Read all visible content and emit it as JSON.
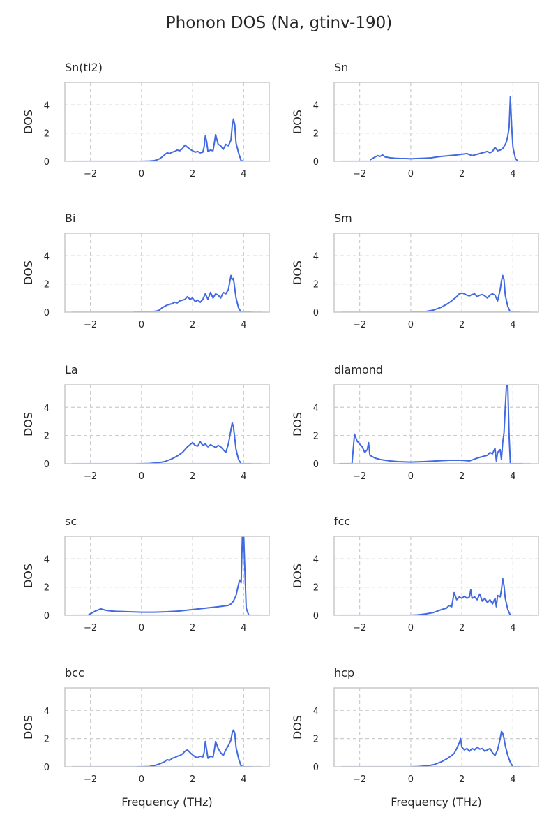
{
  "title": "Phonon DOS (Na, gtinv-190)",
  "chart_data": {
    "type": "line",
    "shared": {
      "xlabel": "Frequency (THz)",
      "ylabel": "DOS",
      "xlim": [
        -3,
        5
      ],
      "ylim": [
        0,
        5.6
      ],
      "xticks": [
        -2,
        0,
        2,
        4
      ],
      "yticks": [
        0,
        2,
        4
      ],
      "grid": true,
      "grid_style": "dashed",
      "line_color": "#4169e1",
      "grid_color": "#cccccc",
      "frame_color": "#cccccc"
    },
    "panels": [
      {
        "title": "Sn(tI2)",
        "x": [
          -0.2,
          0,
          0.3,
          0.5,
          0.6,
          0.7,
          0.8,
          0.9,
          1.0,
          1.1,
          1.2,
          1.3,
          1.4,
          1.5,
          1.6,
          1.7,
          1.8,
          1.9,
          2.0,
          2.1,
          2.2,
          2.3,
          2.4,
          2.45,
          2.5,
          2.55,
          2.6,
          2.7,
          2.8,
          2.85,
          2.9,
          3.0,
          3.1,
          3.2,
          3.3,
          3.4,
          3.5,
          3.55,
          3.6,
          3.65,
          3.7,
          3.8,
          3.9,
          4.0,
          4.3
        ],
        "y": [
          0,
          0,
          0.02,
          0.05,
          0.1,
          0.18,
          0.3,
          0.45,
          0.6,
          0.55,
          0.65,
          0.7,
          0.8,
          0.75,
          0.9,
          1.15,
          1.0,
          0.85,
          0.75,
          0.65,
          0.7,
          0.6,
          0.65,
          1.0,
          1.8,
          1.4,
          0.7,
          0.8,
          0.75,
          1.3,
          1.9,
          1.2,
          1.1,
          0.85,
          1.2,
          1.1,
          1.5,
          2.5,
          3.0,
          2.6,
          1.3,
          0.6,
          0.05,
          0,
          0
        ]
      },
      {
        "title": "Sn",
        "x": [
          -1.6,
          -1.5,
          -1.4,
          -1.3,
          -1.2,
          -1.1,
          -1.0,
          -0.9,
          -0.8,
          -0.6,
          -0.4,
          -0.2,
          0,
          0.2,
          0.5,
          0.8,
          1.0,
          1.2,
          1.5,
          1.8,
          2.0,
          2.2,
          2.4,
          2.6,
          2.8,
          3.0,
          3.1,
          3.2,
          3.3,
          3.4,
          3.5,
          3.6,
          3.7,
          3.75,
          3.8,
          3.85,
          3.9,
          3.95,
          4.0,
          4.1,
          4.2,
          4.7
        ],
        "y": [
          0.1,
          0.2,
          0.3,
          0.4,
          0.35,
          0.45,
          0.3,
          0.28,
          0.25,
          0.22,
          0.2,
          0.2,
          0.18,
          0.2,
          0.22,
          0.25,
          0.3,
          0.35,
          0.4,
          0.45,
          0.5,
          0.55,
          0.4,
          0.5,
          0.6,
          0.7,
          0.6,
          0.7,
          1.0,
          0.75,
          0.8,
          0.9,
          1.2,
          1.4,
          1.8,
          2.4,
          4.6,
          2.5,
          1.0,
          0.2,
          0,
          0
        ]
      },
      {
        "title": "Bi",
        "x": [
          -0.3,
          0,
          0.4,
          0.6,
          0.7,
          0.8,
          0.9,
          1.0,
          1.1,
          1.2,
          1.3,
          1.4,
          1.5,
          1.6,
          1.7,
          1.8,
          1.9,
          2.0,
          2.1,
          2.2,
          2.3,
          2.4,
          2.5,
          2.6,
          2.7,
          2.8,
          2.9,
          3.0,
          3.1,
          3.2,
          3.3,
          3.4,
          3.5,
          3.55,
          3.6,
          3.7,
          3.8,
          3.9,
          4.0,
          4.3
        ],
        "y": [
          0,
          0,
          0.03,
          0.08,
          0.15,
          0.3,
          0.4,
          0.5,
          0.55,
          0.6,
          0.7,
          0.65,
          0.8,
          0.85,
          0.9,
          1.1,
          0.9,
          1.0,
          0.75,
          0.85,
          0.7,
          0.9,
          1.3,
          0.9,
          1.4,
          1.0,
          1.3,
          1.2,
          1.0,
          1.4,
          1.3,
          1.6,
          2.6,
          2.3,
          2.4,
          1.0,
          0.3,
          0,
          0,
          0
        ]
      },
      {
        "title": "Sm",
        "x": [
          0,
          0.3,
          0.6,
          0.9,
          1.2,
          1.4,
          1.6,
          1.8,
          1.9,
          2.0,
          2.1,
          2.2,
          2.3,
          2.4,
          2.5,
          2.6,
          2.7,
          2.8,
          2.9,
          3.0,
          3.1,
          3.2,
          3.3,
          3.4,
          3.5,
          3.55,
          3.6,
          3.65,
          3.7,
          3.8,
          3.9,
          4.3
        ],
        "y": [
          0,
          0.02,
          0.05,
          0.15,
          0.35,
          0.55,
          0.8,
          1.1,
          1.3,
          1.35,
          1.3,
          1.2,
          1.15,
          1.25,
          1.3,
          1.1,
          1.2,
          1.25,
          1.15,
          1.0,
          1.2,
          1.3,
          1.2,
          0.8,
          1.6,
          2.2,
          2.6,
          2.3,
          1.2,
          0.4,
          0,
          0
        ]
      },
      {
        "title": "La",
        "x": [
          -0.2,
          0,
          0.3,
          0.6,
          0.9,
          1.2,
          1.4,
          1.6,
          1.8,
          1.9,
          2.0,
          2.1,
          2.2,
          2.3,
          2.4,
          2.5,
          2.6,
          2.7,
          2.8,
          2.9,
          3.0,
          3.1,
          3.2,
          3.3,
          3.4,
          3.5,
          3.55,
          3.6,
          3.65,
          3.7,
          3.8,
          3.9,
          4.3
        ],
        "y": [
          0,
          0,
          0.02,
          0.06,
          0.15,
          0.35,
          0.55,
          0.8,
          1.2,
          1.35,
          1.5,
          1.3,
          1.25,
          1.55,
          1.3,
          1.4,
          1.2,
          1.35,
          1.25,
          1.15,
          1.3,
          1.2,
          1.0,
          0.8,
          1.4,
          2.4,
          2.9,
          2.6,
          1.8,
          1.0,
          0.3,
          0,
          0
        ]
      },
      {
        "title": "diamond",
        "x": [
          -2.8,
          -2.4,
          -2.3,
          -2.2,
          -2.1,
          -2.0,
          -1.9,
          -1.8,
          -1.7,
          -1.65,
          -1.6,
          -1.5,
          -1.4,
          -1.2,
          -1.0,
          -0.8,
          -0.5,
          0,
          0.5,
          1.0,
          1.5,
          2.0,
          2.3,
          2.6,
          2.8,
          3.0,
          3.1,
          3.2,
          3.3,
          3.35,
          3.4,
          3.5,
          3.55,
          3.6,
          3.65,
          3.7,
          3.75,
          3.8,
          3.85,
          3.9,
          4.4
        ],
        "y": [
          0,
          0,
          0,
          2.1,
          1.6,
          1.4,
          1.2,
          0.8,
          1.0,
          1.5,
          0.6,
          0.5,
          0.4,
          0.3,
          0.25,
          0.2,
          0.15,
          0.12,
          0.15,
          0.2,
          0.25,
          0.25,
          0.2,
          0.4,
          0.5,
          0.6,
          0.8,
          0.7,
          1.1,
          0.2,
          0.8,
          1.0,
          0.3,
          1.5,
          2.2,
          4.0,
          5.6,
          5.6,
          2.0,
          0,
          0
        ]
      },
      {
        "title": "sc",
        "x": [
          -2.8,
          -2.1,
          -2.0,
          -1.8,
          -1.6,
          -1.5,
          -1.4,
          -1.2,
          -1.0,
          -0.5,
          0,
          0.5,
          1.0,
          1.5,
          2.0,
          2.5,
          3.0,
          3.2,
          3.4,
          3.5,
          3.6,
          3.7,
          3.8,
          3.85,
          3.9,
          3.95,
          4.0,
          4.05,
          4.1,
          4.2,
          4.8
        ],
        "y": [
          0,
          0,
          0.1,
          0.3,
          0.45,
          0.4,
          0.35,
          0.3,
          0.28,
          0.25,
          0.22,
          0.22,
          0.25,
          0.3,
          0.4,
          0.5,
          0.6,
          0.65,
          0.7,
          0.8,
          1.0,
          1.4,
          2.2,
          2.5,
          2.3,
          5.6,
          5.6,
          3.0,
          0.5,
          0,
          0
        ]
      },
      {
        "title": "fcc",
        "x": [
          0,
          0.3,
          0.6,
          0.9,
          1.2,
          1.4,
          1.5,
          1.6,
          1.7,
          1.8,
          1.9,
          2.0,
          2.1,
          2.2,
          2.3,
          2.35,
          2.4,
          2.5,
          2.6,
          2.7,
          2.8,
          2.9,
          3.0,
          3.1,
          3.2,
          3.3,
          3.35,
          3.4,
          3.5,
          3.55,
          3.6,
          3.65,
          3.7,
          3.8,
          3.9,
          4.3
        ],
        "y": [
          0,
          0.03,
          0.1,
          0.2,
          0.4,
          0.5,
          0.7,
          0.6,
          1.6,
          1.1,
          1.3,
          1.2,
          1.35,
          1.2,
          1.3,
          1.8,
          1.2,
          1.3,
          1.1,
          1.5,
          1.0,
          1.2,
          0.9,
          1.1,
          0.8,
          1.2,
          0.6,
          1.4,
          1.3,
          1.8,
          2.6,
          2.1,
          1.2,
          0.4,
          0,
          0
        ]
      },
      {
        "title": "bcc",
        "x": [
          -0.2,
          0,
          0.3,
          0.5,
          0.7,
          0.9,
          1.0,
          1.1,
          1.2,
          1.3,
          1.4,
          1.5,
          1.6,
          1.7,
          1.8,
          1.9,
          2.0,
          2.1,
          2.2,
          2.3,
          2.4,
          2.45,
          2.5,
          2.55,
          2.6,
          2.7,
          2.8,
          2.85,
          2.9,
          3.0,
          3.1,
          3.2,
          3.3,
          3.4,
          3.5,
          3.55,
          3.6,
          3.65,
          3.7,
          3.8,
          3.9,
          4.0,
          4.3
        ],
        "y": [
          0,
          0,
          0.02,
          0.08,
          0.2,
          0.35,
          0.5,
          0.45,
          0.6,
          0.65,
          0.75,
          0.8,
          0.9,
          1.1,
          1.2,
          1.0,
          0.85,
          0.7,
          0.65,
          0.75,
          0.7,
          1.0,
          1.8,
          1.2,
          0.6,
          0.75,
          0.7,
          1.2,
          1.8,
          1.3,
          1.0,
          0.8,
          1.2,
          1.5,
          1.9,
          2.4,
          2.6,
          2.4,
          1.4,
          0.6,
          0.05,
          0,
          0
        ]
      },
      {
        "title": "hcp",
        "x": [
          0,
          0.3,
          0.6,
          0.9,
          1.2,
          1.4,
          1.6,
          1.7,
          1.8,
          1.9,
          1.95,
          2.0,
          2.1,
          2.2,
          2.3,
          2.4,
          2.5,
          2.6,
          2.7,
          2.8,
          2.9,
          3.0,
          3.1,
          3.2,
          3.3,
          3.4,
          3.5,
          3.55,
          3.6,
          3.65,
          3.7,
          3.8,
          3.9,
          4.0,
          4.3
        ],
        "y": [
          0,
          0.02,
          0.06,
          0.15,
          0.35,
          0.55,
          0.8,
          0.95,
          1.3,
          1.7,
          2.0,
          1.4,
          1.2,
          1.3,
          1.1,
          1.3,
          1.2,
          1.4,
          1.25,
          1.3,
          1.1,
          1.2,
          1.3,
          1.0,
          0.8,
          1.2,
          2.0,
          2.5,
          2.4,
          2.0,
          1.5,
          0.8,
          0.3,
          0,
          0
        ]
      }
    ]
  }
}
